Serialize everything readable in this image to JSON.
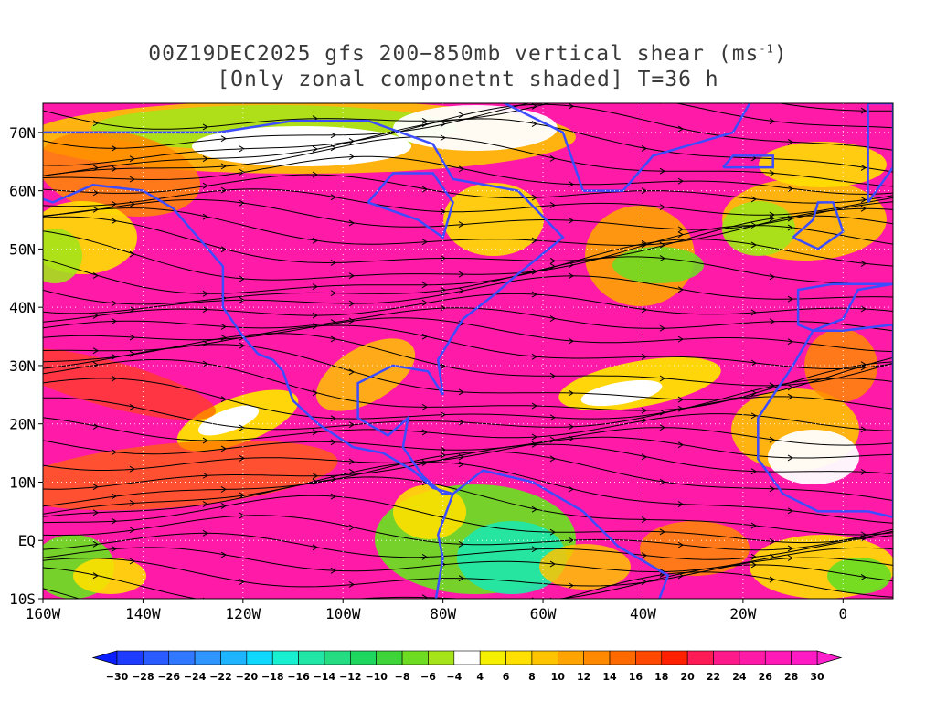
{
  "title": {
    "line1_main": "00Z19DEC2025 gfs 200−850mb vertical shear (ms",
    "line1_sup": "-1",
    "line1_end": ")",
    "line2": "[Only zonal componetnt shaded] T=36 h"
  },
  "axes": {
    "lat_labels": [
      "70N",
      "60N",
      "50N",
      "40N",
      "30N",
      "20N",
      "10N",
      "EQ",
      "10S"
    ],
    "lat_values": [
      70,
      60,
      50,
      40,
      30,
      20,
      10,
      0,
      -10
    ],
    "lon_labels": [
      "160W",
      "140W",
      "120W",
      "100W",
      "80W",
      "60W",
      "40W",
      "20W",
      "0"
    ],
    "lon_values": [
      -160,
      -140,
      -120,
      -100,
      -80,
      -60,
      -40,
      -20,
      0
    ],
    "lat_range": [
      -10,
      75
    ],
    "lon_range": [
      -160,
      10
    ]
  },
  "colorbar": {
    "labels": [
      "-30",
      "-28",
      "-26",
      "-24",
      "-22",
      "-20",
      "-18",
      "-16",
      "-14",
      "-12",
      "-10",
      "-8",
      "-6",
      "-4",
      "4",
      "6",
      "8",
      "10",
      "12",
      "14",
      "16",
      "18",
      "20",
      "22",
      "24",
      "26",
      "28",
      "30"
    ],
    "colors": [
      "#1e3cff",
      "#2a5bff",
      "#2f78ff",
      "#2f95ff",
      "#1fb4ff",
      "#10d8ff",
      "#19f0d2",
      "#22e6a6",
      "#25dc82",
      "#1fd75e",
      "#3ed43a",
      "#6fdc24",
      "#a5e31a",
      "#ffffff",
      "#f5f000",
      "#ffe000",
      "#ffc400",
      "#ffa400",
      "#ff8a00",
      "#ff6a00",
      "#ff4800",
      "#ff2000",
      "#ff1b55",
      "#ff1a8c",
      "#ff1aa8",
      "#ff1ab8",
      "#ff1ac4"
    ],
    "under_color": "#0a1eff",
    "over_color": "#ff22cc"
  },
  "colors": {
    "land_outline": "#3c4cff",
    "contour": "#a020f0",
    "streamline": "#000000",
    "grid": "#ffffff"
  }
}
